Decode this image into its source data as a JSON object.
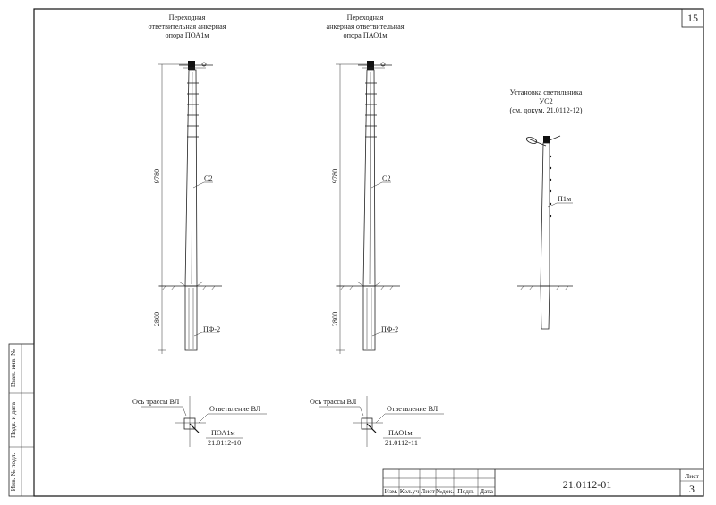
{
  "sheet_number": "15",
  "poles": [
    {
      "title": [
        "Переходная",
        "ответвительная анкерная",
        "опора ПОА1м"
      ],
      "height_above": "9780",
      "height_below": "2800",
      "post_label": "С2",
      "foundation_label": "ПФ-2",
      "plan": {
        "axis_label": "Ось трассы ВЛ",
        "branch_label": "Ответвление ВЛ",
        "code": "ПОА1м",
        "doc": "21.0112-10"
      }
    },
    {
      "title": [
        "Переходная",
        "анкерная ответвительная",
        "опора ПАО1м"
      ],
      "height_above": "9780",
      "height_below": "2800",
      "post_label": "С2",
      "foundation_label": "ПФ-2",
      "plan": {
        "axis_label": "Ось трассы ВЛ",
        "branch_label": "Ответвление ВЛ",
        "code": "ПАО1м",
        "doc": "21.0112-11"
      }
    }
  ],
  "lamp": {
    "title": [
      "Установка светильника",
      "УС2",
      "(см. докум. 21.0112-12)"
    ],
    "pole_label": "П1м"
  },
  "side_stamp": [
    "Инв. № подл.",
    "Подп. и дата",
    "Взам. инв. №"
  ],
  "title_block": {
    "headers": [
      "Изм.",
      "Кол.уч",
      "Лист",
      "№док.",
      "Подп.",
      "Дата"
    ],
    "doc_number": "21.0112-01",
    "sheet_label": "Лист",
    "sheet_value": "3"
  }
}
